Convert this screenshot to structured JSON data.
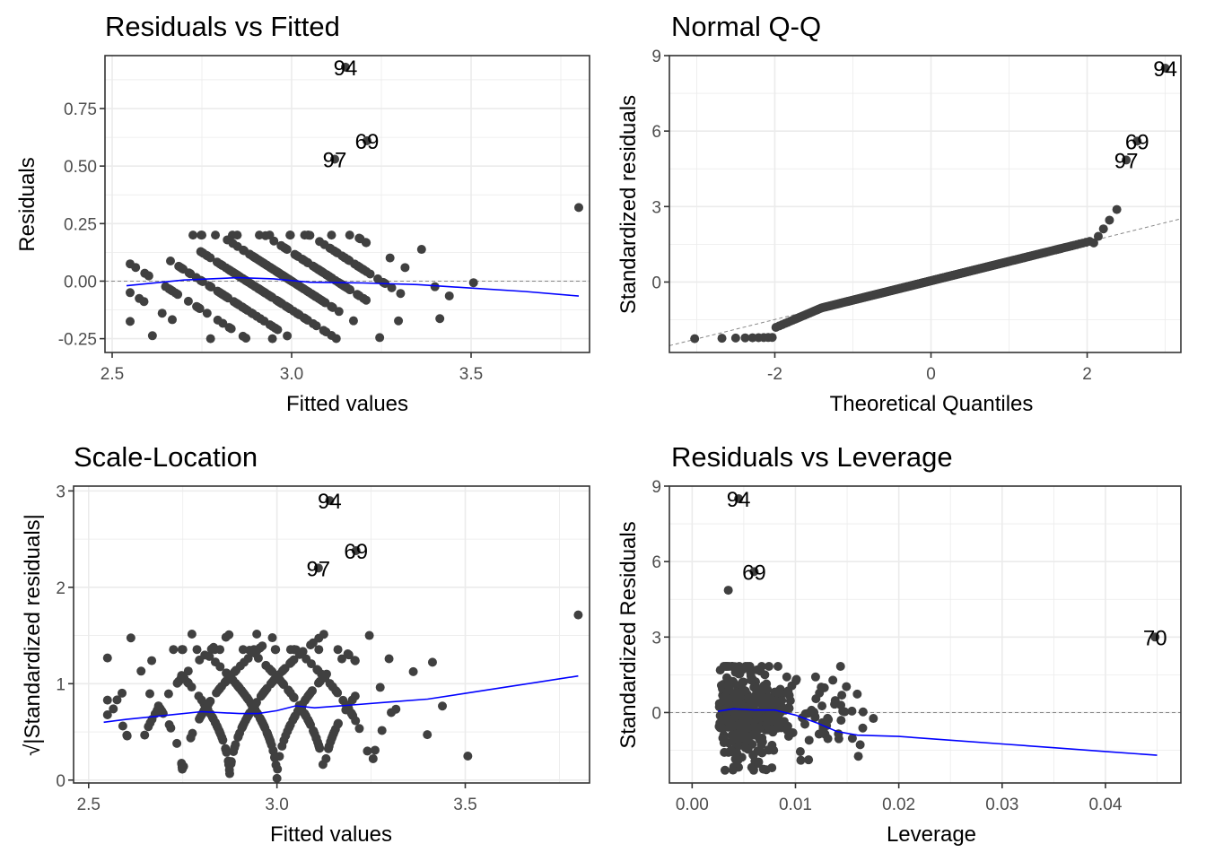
{
  "chart_data": [
    {
      "id": "resid-fitted",
      "type": "scatter",
      "title": "Residuals vs Fitted",
      "xlabel": "Fitted values",
      "ylabel": "Residuals",
      "xlim": [
        2.48,
        3.83
      ],
      "ylim": [
        -0.31,
        0.98
      ],
      "xticks": [
        2.5,
        3.0,
        3.5
      ],
      "xtick_labels": [
        "2.5",
        "3.0",
        "3.5"
      ],
      "yticks": [
        -0.25,
        0.0,
        0.25,
        0.5,
        0.75
      ],
      "ytick_labels": [
        "-0.25",
        "0.00",
        "0.25",
        "0.50",
        "0.75"
      ],
      "reference_line": {
        "type": "hline",
        "y": 0
      },
      "smooth": {
        "x": [
          2.54,
          2.7,
          2.85,
          2.95,
          3.05,
          3.2,
          3.35,
          3.5,
          3.65,
          3.8
        ],
        "y": [
          -0.02,
          0.005,
          0.015,
          0.01,
          -0.005,
          -0.008,
          -0.015,
          -0.03,
          -0.045,
          -0.065
        ]
      },
      "labels": [
        {
          "text": "94",
          "x": 3.15,
          "y": 0.93
        },
        {
          "text": "69",
          "x": 3.21,
          "y": 0.61
        },
        {
          "text": "97",
          "x": 3.12,
          "y": 0.53
        }
      ],
      "grid": true
    },
    {
      "id": "normal-qq",
      "type": "scatter",
      "title": "Normal Q-Q",
      "xlabel": "Theoretical Quantiles",
      "ylabel": "Standardized residuals",
      "xlim": [
        -3.35,
        3.2
      ],
      "ylim": [
        -2.8,
        9
      ],
      "xticks": [
        -2,
        0,
        2
      ],
      "xtick_labels": [
        "-2",
        "0",
        "2"
      ],
      "yticks": [
        0,
        3,
        6,
        9
      ],
      "ytick_labels": [
        "0",
        "3",
        "6",
        "9"
      ],
      "reference_line": {
        "type": "abline",
        "intercept": 0.05,
        "slope": 0.77
      },
      "labels": [
        {
          "text": "94",
          "x": 3.0,
          "y": 8.5
        },
        {
          "text": "69",
          "x": 2.64,
          "y": 5.6
        },
        {
          "text": "97",
          "x": 2.5,
          "y": 4.85
        }
      ],
      "grid": true
    },
    {
      "id": "scale-location",
      "type": "scatter",
      "title": "Scale-Location",
      "xlabel": "Fitted values",
      "ylabel": "√|Standardized residuals|",
      "xlim": [
        2.46,
        3.83
      ],
      "ylim": [
        -0.03,
        3.05
      ],
      "xticks": [
        2.5,
        3.0,
        3.5
      ],
      "xtick_labels": [
        "2.5",
        "3.0",
        "3.5"
      ],
      "yticks": [
        0,
        1,
        2,
        3
      ],
      "ytick_labels": [
        "0",
        "1",
        "2",
        "3"
      ],
      "smooth": {
        "x": [
          2.54,
          2.6,
          2.7,
          2.8,
          2.9,
          2.95,
          3.0,
          3.05,
          3.1,
          3.2,
          3.3,
          3.4,
          3.5,
          3.6,
          3.8
        ],
        "y": [
          0.6,
          0.63,
          0.67,
          0.71,
          0.69,
          0.69,
          0.72,
          0.77,
          0.75,
          0.78,
          0.81,
          0.84,
          0.9,
          0.96,
          1.08
        ]
      },
      "labels": [
        {
          "text": "94",
          "x": 3.14,
          "y": 2.9
        },
        {
          "text": "69",
          "x": 3.21,
          "y": 2.38
        },
        {
          "text": "97",
          "x": 3.11,
          "y": 2.2
        }
      ],
      "grid": true
    },
    {
      "id": "resid-leverage",
      "type": "scatter",
      "title": "Residuals vs Leverage",
      "xlabel": "Leverage",
      "ylabel": "Standardized Residuals",
      "xlim": [
        -0.0022,
        0.0473
      ],
      "ylim": [
        -2.8,
        9
      ],
      "xticks": [
        0.0,
        0.01,
        0.02,
        0.03,
        0.04
      ],
      "xtick_labels": [
        "0.00",
        "0.01",
        "0.02",
        "0.03",
        "0.04"
      ],
      "yticks": [
        0,
        3,
        6,
        9
      ],
      "ytick_labels": [
        "0",
        "3",
        "6",
        "9"
      ],
      "reference_line": {
        "type": "hline",
        "y": 0
      },
      "smooth": {
        "x": [
          0.0025,
          0.004,
          0.006,
          0.008,
          0.01,
          0.012,
          0.014,
          0.016,
          0.02,
          0.025,
          0.03,
          0.035,
          0.04,
          0.045
        ],
        "y": [
          0.05,
          0.15,
          0.1,
          0.1,
          -0.1,
          -0.4,
          -0.75,
          -0.9,
          -0.95,
          -1.1,
          -1.25,
          -1.4,
          -1.55,
          -1.7
        ]
      },
      "labels": [
        {
          "text": "94",
          "x": 0.0045,
          "y": 8.5
        },
        {
          "text": "69",
          "x": 0.006,
          "y": 5.6
        },
        {
          "text": "70",
          "x": 0.0448,
          "y": 3.0
        }
      ],
      "grid": true
    }
  ]
}
